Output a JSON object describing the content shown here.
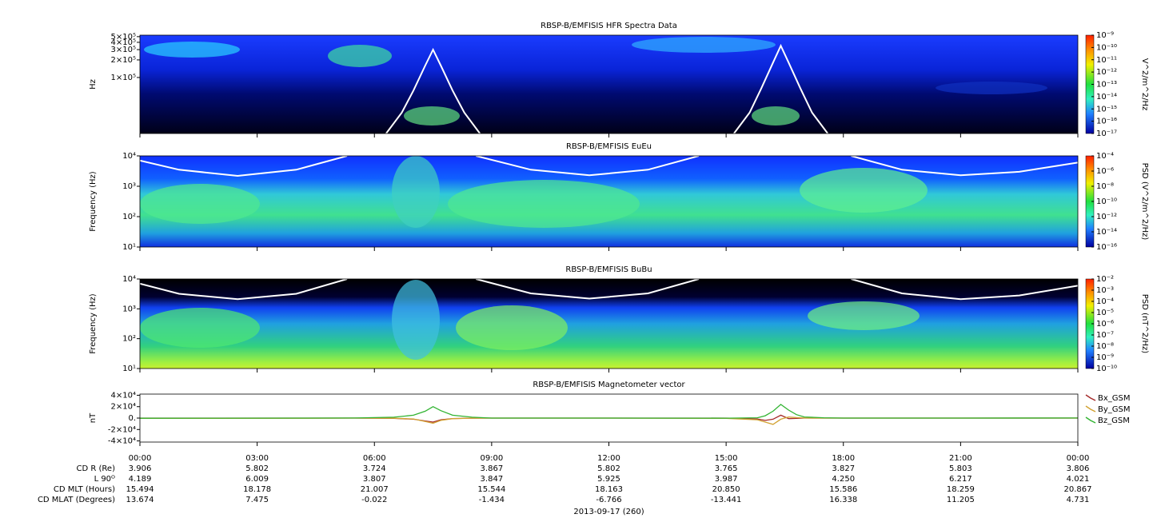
{
  "chart_data": [
    {
      "type": "spectrogram",
      "title": "RBSP-B/EMFISIS  HFR Spectra Data",
      "ylabel": "Hz",
      "ylog": true,
      "xlim": [
        0,
        24
      ],
      "ylim": [
        11000,
        530000
      ],
      "yticks": [
        {
          "value": 100000,
          "label": "1×10⁵"
        },
        {
          "value": 200000,
          "label": "2×10⁵"
        },
        {
          "value": 300000,
          "label": "3×10⁵"
        },
        {
          "value": 400000,
          "label": "4×10⁵"
        },
        {
          "value": 500000,
          "label": "5×10⁵"
        }
      ],
      "zlabel": "V^2/m^2/Hz",
      "zlog": true,
      "zlim": [
        1e-17,
        1e-09
      ],
      "zticks": [
        {
          "value": 1e-17,
          "label": "10⁻¹⁷"
        },
        {
          "value": 1e-16,
          "label": "10⁻¹⁶"
        },
        {
          "value": 1e-15,
          "label": "10⁻¹⁵"
        },
        {
          "value": 1e-14,
          "label": "10⁻¹⁴"
        },
        {
          "value": 1e-13,
          "label": "10⁻¹³"
        },
        {
          "value": 1e-12,
          "label": "10⁻¹²"
        },
        {
          "value": 1e-11,
          "label": "10⁻¹¹"
        },
        {
          "value": 1e-10,
          "label": "10⁻¹⁰"
        },
        {
          "value": 1e-09,
          "label": "10⁻⁹"
        }
      ],
      "curves": [
        {
          "color": "#ffffff",
          "x": [
            6.3,
            6.7,
            7.0,
            7.3,
            7.5,
            7.7,
            8.0,
            8.3,
            8.7
          ],
          "values": [
            11000,
            25000,
            60000,
            160000,
            300000,
            160000,
            60000,
            25000,
            11000
          ]
        },
        {
          "color": "#ffffff",
          "x": [
            15.2,
            15.6,
            15.9,
            16.2,
            16.4,
            16.6,
            16.9,
            17.2,
            17.6
          ],
          "values": [
            11000,
            25000,
            65000,
            180000,
            350000,
            180000,
            65000,
            25000,
            11000
          ]
        }
      ]
    },
    {
      "type": "spectrogram",
      "title": "RBSP-B/EMFISIS  EuEu",
      "ylabel": "Frequency (Hz)",
      "ylog": true,
      "xlim": [
        0,
        24
      ],
      "ylim": [
        10,
        10000
      ],
      "yticks": [
        {
          "value": 10,
          "label": "10¹"
        },
        {
          "value": 100,
          "label": "10²"
        },
        {
          "value": 1000,
          "label": "10³"
        },
        {
          "value": 10000,
          "label": "10⁴"
        }
      ],
      "zlabel": "PSD (V^2/m^2/Hz)",
      "zlog": true,
      "zlim": [
        1e-16,
        0.0001
      ],
      "zticks": [
        {
          "value": 1e-16,
          "label": "10⁻¹⁶"
        },
        {
          "value": 1e-14,
          "label": "10⁻¹⁴"
        },
        {
          "value": 1e-12,
          "label": "10⁻¹²"
        },
        {
          "value": 1e-10,
          "label": "10⁻¹⁰"
        },
        {
          "value": 1e-08,
          "label": "10⁻⁸"
        },
        {
          "value": 1e-06,
          "label": "10⁻⁶"
        },
        {
          "value": 0.0001,
          "label": "10⁻⁴"
        }
      ],
      "curves": [
        {
          "color": "#ffffff",
          "x": [
            0,
            1,
            2.5,
            4,
            5.3,
            6.9,
            8.6,
            10,
            11.5,
            13,
            14.3,
            16,
            18.2,
            19.5,
            21,
            22.5,
            24
          ],
          "values": [
            7000,
            3500,
            2200,
            3500,
            10000,
            null,
            10000,
            3500,
            2300,
            3500,
            10000,
            null,
            10000,
            3500,
            2300,
            3000,
            6000
          ]
        }
      ]
    },
    {
      "type": "spectrogram",
      "title": "RBSP-B/EMFISIS  BuBu",
      "ylabel": "Frequency (Hz)",
      "ylog": true,
      "xlim": [
        0,
        24
      ],
      "ylim": [
        10,
        10000
      ],
      "yticks": [
        {
          "value": 10,
          "label": "10¹"
        },
        {
          "value": 100,
          "label": "10²"
        },
        {
          "value": 1000,
          "label": "10³"
        },
        {
          "value": 10000,
          "label": "10⁴"
        }
      ],
      "zlabel": "PSD (nT^2/Hz)",
      "zlog": true,
      "zlim": [
        1e-10,
        0.01
      ],
      "zticks": [
        {
          "value": 1e-10,
          "label": "10⁻¹⁰"
        },
        {
          "value": 1e-09,
          "label": "10⁻⁹"
        },
        {
          "value": 1e-08,
          "label": "10⁻⁸"
        },
        {
          "value": 1e-07,
          "label": "10⁻⁷"
        },
        {
          "value": 1e-06,
          "label": "10⁻⁶"
        },
        {
          "value": 1e-05,
          "label": "10⁻⁵"
        },
        {
          "value": 0.0001,
          "label": "10⁻⁴"
        },
        {
          "value": 0.001,
          "label": "10⁻³"
        },
        {
          "value": 0.01,
          "label": "10⁻²"
        }
      ],
      "curves": [
        {
          "color": "#ffffff",
          "x": [
            0,
            1,
            2.5,
            4,
            5.3,
            6.9,
            8.6,
            10,
            11.5,
            13,
            14.3,
            16,
            18.2,
            19.5,
            21,
            22.5,
            24
          ],
          "values": [
            7000,
            3200,
            2100,
            3200,
            10000,
            null,
            10000,
            3300,
            2200,
            3300,
            10000,
            null,
            10000,
            3300,
            2100,
            2800,
            6000
          ]
        }
      ]
    },
    {
      "type": "line",
      "title": "RBSP-B/EMFISIS  Magnetometer vector",
      "ylabel": "nT",
      "xlim": [
        0,
        24
      ],
      "ylim": [
        -42000,
        42000
      ],
      "yticks": [
        {
          "value": -40000,
          "label": "-4×10⁴"
        },
        {
          "value": -20000,
          "label": "-2×10⁴"
        },
        {
          "value": 0,
          "label": "0."
        },
        {
          "value": 20000,
          "label": "2×10⁴"
        },
        {
          "value": 40000,
          "label": "4×10⁴"
        }
      ],
      "xticks": [
        {
          "value": 0,
          "label": "00:00"
        },
        {
          "value": 3,
          "label": "03:00"
        },
        {
          "value": 6,
          "label": "06:00"
        },
        {
          "value": 9,
          "label": "09:00"
        },
        {
          "value": 12,
          "label": "12:00"
        },
        {
          "value": 15,
          "label": "15:00"
        },
        {
          "value": 18,
          "label": "18:00"
        },
        {
          "value": 21,
          "label": "21:00"
        },
        {
          "value": 24,
          "label": "00:00"
        }
      ],
      "x": [
        0,
        2,
        4,
        5.5,
        6.5,
        7,
        7.3,
        7.5,
        7.7,
        8,
        8.5,
        9,
        12,
        15,
        15.8,
        16,
        16.2,
        16.4,
        16.6,
        16.8,
        17,
        17.5,
        18,
        21,
        24
      ],
      "series": [
        {
          "name": "Bx_GSM",
          "color": "#a52a2a",
          "values": [
            0,
            0,
            0,
            0,
            -500,
            -2000,
            -5000,
            -7000,
            -3000,
            -800,
            -200,
            0,
            0,
            0,
            -1500,
            -4000,
            -2000,
            5000,
            -1000,
            -500,
            0,
            0,
            0,
            0,
            0
          ]
        },
        {
          "name": "By_GSM",
          "color": "#d2a232",
          "values": [
            -500,
            -500,
            -300,
            0,
            -300,
            -1500,
            -6000,
            -9000,
            -4000,
            -1000,
            -200,
            0,
            0,
            -500,
            -3000,
            -7000,
            -11000,
            -2000,
            2000,
            800,
            200,
            0,
            0,
            0,
            0
          ]
        },
        {
          "name": "Bz_GSM",
          "color": "#32b432",
          "values": [
            -300,
            -200,
            0,
            200,
            1500,
            5000,
            12000,
            20000,
            13000,
            5000,
            1500,
            0,
            0,
            -200,
            500,
            4000,
            12000,
            24000,
            14000,
            6000,
            2000,
            500,
            0,
            0,
            100
          ]
        }
      ]
    }
  ],
  "ephemeris": {
    "rows": [
      {
        "label": "CD R (Re)",
        "values": [
          "3.906",
          "5.802",
          "3.724",
          "3.867",
          "5.802",
          "3.765",
          "3.827",
          "5.803",
          "3.806"
        ]
      },
      {
        "label": "L 90ᴼ",
        "values": [
          "4.189",
          "6.009",
          "3.807",
          "3.847",
          "5.925",
          "3.987",
          "4.250",
          "6.217",
          "4.021"
        ]
      },
      {
        "label": "CD MLT (Hours)",
        "values": [
          "15.494",
          "18.178",
          "21.007",
          "15.544",
          "18.163",
          "20.850",
          "15.586",
          "18.259",
          "20.867"
        ]
      },
      {
        "label": "CD MLAT (Degrees)",
        "values": [
          "13.674",
          "7.475",
          "-0.022",
          "-1.434",
          "-6.766",
          "-13.441",
          "16.338",
          "11.205",
          "4.731"
        ]
      }
    ],
    "date": "2013-09-17 (260)"
  }
}
